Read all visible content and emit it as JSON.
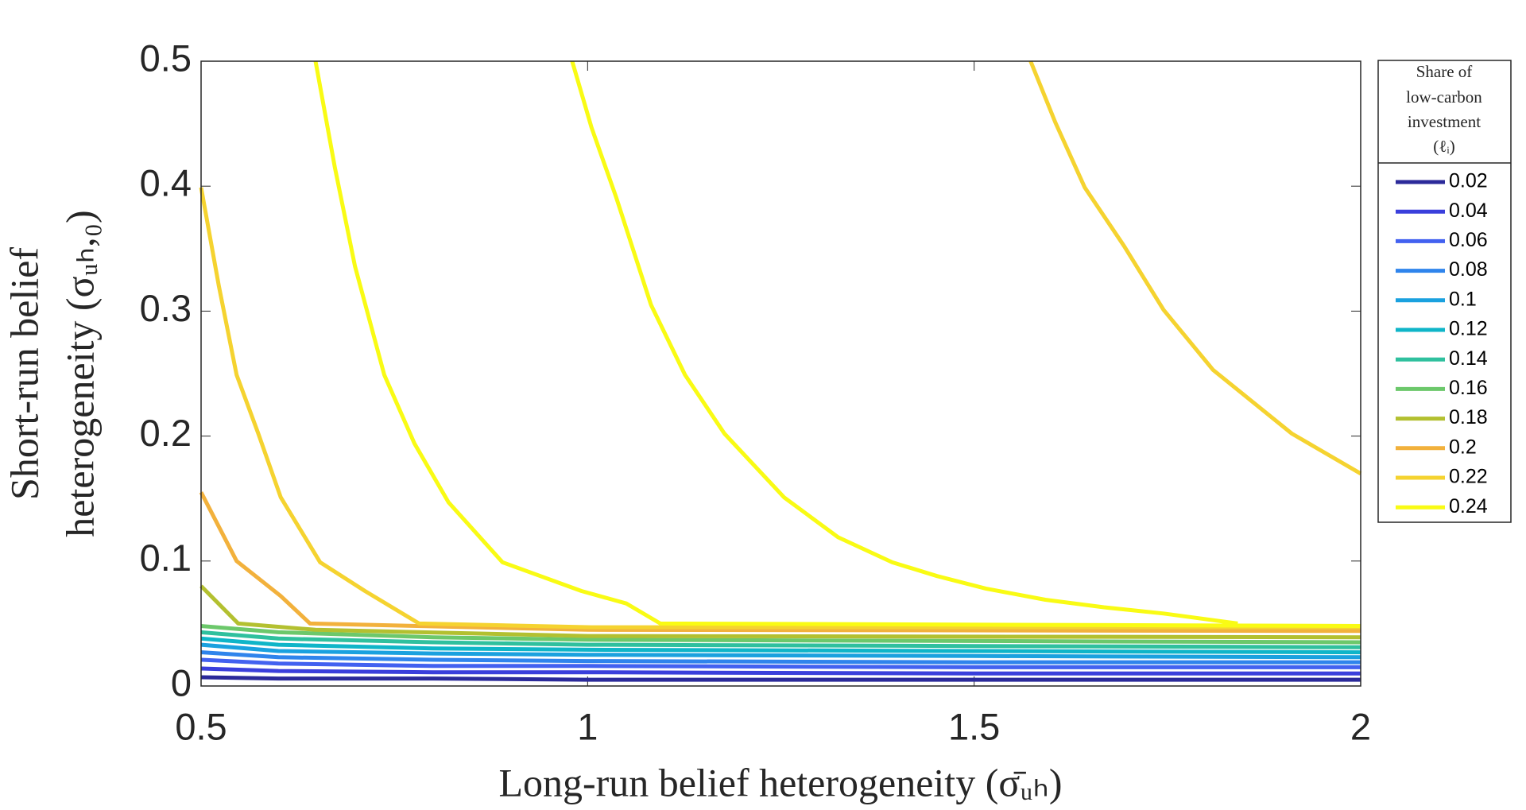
{
  "chart_data": {
    "type": "line",
    "xlabel": "Long-run belief heterogeneity (σ̄ᵤₕ)",
    "ylabel": [
      "Short-run belief",
      "heterogeneity (σᵤₕ,₀)"
    ],
    "legend_title": [
      "Share of",
      "low-carbon",
      "investment",
      "(ℓᵢ)"
    ],
    "legend": "outside-right",
    "grid": false,
    "xlim": [
      0.5,
      2
    ],
    "xticks": [
      0.5,
      1,
      1.5,
      2
    ],
    "ylim": [
      0,
      0.5
    ],
    "yticks": [
      0,
      0.1,
      0.2,
      0.3,
      0.4,
      0.5
    ],
    "series": [
      {
        "name": "0.02",
        "color": "#2b2a9a",
        "x": [
          0.5,
          0.6,
          0.8,
          1,
          1.5,
          2
        ],
        "values": [
          0.007,
          0.006,
          0.006,
          0.005,
          0.005,
          0.005
        ]
      },
      {
        "name": "0.04",
        "color": "#3a3fdc",
        "x": [
          0.5,
          0.6,
          0.8,
          1,
          1.5,
          2
        ],
        "values": [
          0.014,
          0.012,
          0.011,
          0.011,
          0.01,
          0.01
        ]
      },
      {
        "name": "0.06",
        "color": "#4261f0",
        "x": [
          0.5,
          0.6,
          0.8,
          1,
          1.5,
          2
        ],
        "values": [
          0.021,
          0.018,
          0.016,
          0.016,
          0.015,
          0.015
        ]
      },
      {
        "name": "0.08",
        "color": "#2f84ec",
        "x": [
          0.5,
          0.6,
          0.8,
          1,
          1.5,
          2
        ],
        "values": [
          0.027,
          0.023,
          0.021,
          0.02,
          0.019,
          0.019
        ]
      },
      {
        "name": "0.1",
        "color": "#1aa1df",
        "x": [
          0.5,
          0.6,
          0.8,
          1,
          1.5,
          2
        ],
        "values": [
          0.033,
          0.028,
          0.026,
          0.025,
          0.024,
          0.023
        ]
      },
      {
        "name": "0.12",
        "color": "#0fb5c8",
        "x": [
          0.5,
          0.6,
          0.8,
          1,
          1.5,
          2
        ],
        "values": [
          0.038,
          0.033,
          0.03,
          0.029,
          0.028,
          0.027
        ]
      },
      {
        "name": "0.14",
        "color": "#2fc09e",
        "x": [
          0.5,
          0.6,
          0.8,
          1,
          1.5,
          2
        ],
        "values": [
          0.043,
          0.038,
          0.035,
          0.033,
          0.032,
          0.031
        ]
      },
      {
        "name": "0.16",
        "color": "#6cc86b",
        "x": [
          0.5,
          0.6,
          0.8,
          1,
          1.5,
          2
        ],
        "values": [
          0.048,
          0.043,
          0.039,
          0.037,
          0.036,
          0.035
        ]
      },
      {
        "name": "0.18",
        "color": "#b3c030",
        "x": [
          0.5,
          0.548,
          0.648,
          1,
          2
        ],
        "values": [
          0.08,
          0.05,
          0.045,
          0.04,
          0.039
        ]
      },
      {
        "name": "0.2",
        "color": "#f2b13c",
        "x": [
          0.5,
          0.546,
          0.603,
          0.641,
          1,
          2
        ],
        "values": [
          0.155,
          0.1,
          0.072,
          0.05,
          0.045,
          0.044
        ]
      },
      {
        "name": "0.22",
        "color": "#f5d330",
        "x": [
          0.5,
          0.523,
          0.546,
          0.574,
          0.603,
          0.654,
          0.712,
          0.782,
          1.005,
          2,
          null,
          1.573,
          1.605,
          1.643,
          1.694,
          1.745,
          1.809,
          1.911,
          2
        ],
        "values": [
          0.399,
          0.32,
          0.249,
          0.202,
          0.151,
          0.099,
          0.076,
          0.05,
          0.047,
          0.047,
          null,
          0.5,
          0.451,
          0.399,
          0.352,
          0.301,
          0.253,
          0.202,
          0.17
        ]
      },
      {
        "name": "0.24",
        "color": "#f9fb14",
        "x": [
          0.648,
          0.673,
          0.699,
          0.737,
          0.776,
          0.82,
          0.89,
          0.992,
          1.05,
          1.094,
          2,
          null,
          0.98,
          1.005,
          1.037,
          1.082,
          1.126,
          1.177,
          1.254,
          1.324,
          1.394,
          1.452,
          1.515,
          1.592,
          1.668,
          1.745,
          1.841
        ],
        "values": [
          0.5,
          0.415,
          0.336,
          0.249,
          0.194,
          0.147,
          0.099,
          0.076,
          0.066,
          0.05,
          0.048,
          null,
          0.5,
          0.447,
          0.391,
          0.305,
          0.249,
          0.202,
          0.151,
          0.119,
          0.099,
          0.088,
          0.078,
          0.069,
          0.063,
          0.058,
          0.05
        ]
      }
    ]
  }
}
